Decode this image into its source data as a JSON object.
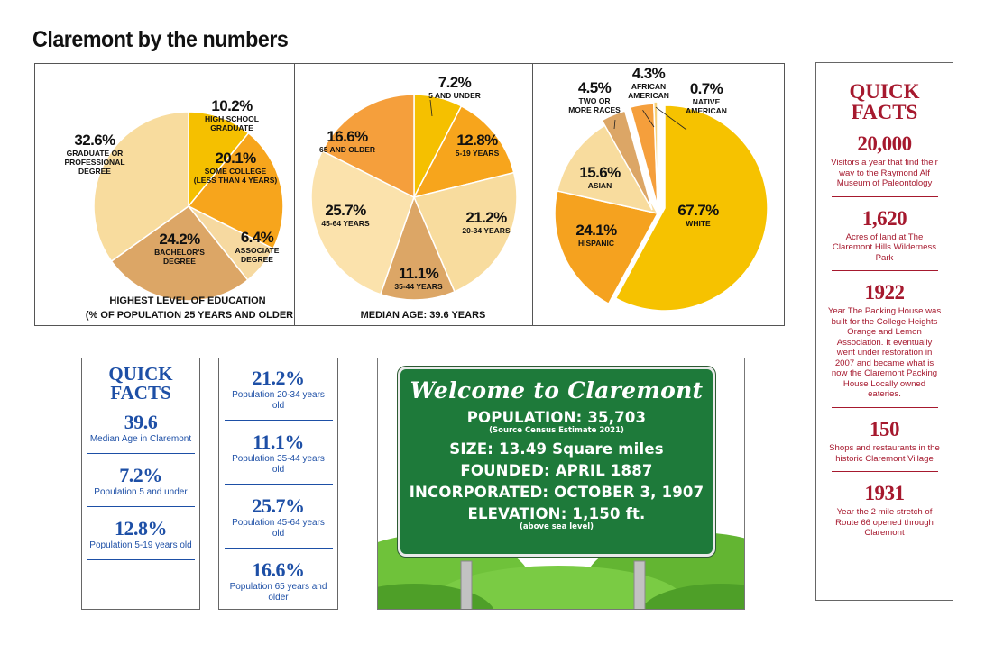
{
  "page": {
    "title": "Claremont by the numbers"
  },
  "chart_data": [
    {
      "type": "pie",
      "title": "HIGHEST LEVEL OF EDUCATION",
      "subtitle": "(% OF POPULATION 25 YEARS AND OLDER",
      "slices": [
        {
          "label": "HIGH SCHOOL GRADUATE",
          "lines": [
            "HIGH SCHOOL",
            "GRADUATE"
          ],
          "value": 10.2,
          "display": "10.2%",
          "color": "#f5c000"
        },
        {
          "label": "SOME COLLEGE (LESS THAN 4 YEARS)",
          "lines": [
            "SOME COLLEGE",
            "(LESS THAN 4 YEARS)"
          ],
          "value": 20.1,
          "display": "20.1%",
          "color": "#f7a51c"
        },
        {
          "label": "ASSOCIATE DEGREE",
          "lines": [
            "ASSOCIATE",
            "DEGREE"
          ],
          "value": 6.4,
          "display": "6.4%",
          "color": "#f6d9a0"
        },
        {
          "label": "BACHELOR'S DEGREE",
          "lines": [
            "BACHELOR'S",
            "DEGREE"
          ],
          "value": 24.2,
          "display": "24.2%",
          "color": "#dca666"
        },
        {
          "label": "GRADUATE OR PROFESSIONAL DEGREE",
          "lines": [
            "GRADUATE OR",
            "PROFESSIONAL",
            "DEGREE"
          ],
          "value": 32.6,
          "display": "32.6%",
          "color": "#f8dc9e"
        }
      ]
    },
    {
      "type": "pie",
      "title": "MEDIAN AGE: 39.6 YEARS",
      "slices": [
        {
          "label": "5 AND UNDER",
          "lines": [
            "5 AND UNDER"
          ],
          "value": 7.2,
          "display": "7.2%",
          "color": "#f5c000"
        },
        {
          "label": "5-19 YEARS",
          "lines": [
            "5-19 YEARS"
          ],
          "value": 12.8,
          "display": "12.8%",
          "color": "#f7a51c"
        },
        {
          "label": "20-34 YEARS",
          "lines": [
            "20-34 YEARS"
          ],
          "value": 21.2,
          "display": "21.2%",
          "color": "#f8dc9e"
        },
        {
          "label": "35-44 YEARS",
          "lines": [
            "35-44 YEARS"
          ],
          "value": 11.1,
          "display": "11.1%",
          "color": "#dca666"
        },
        {
          "label": "45-64 YEARS",
          "lines": [
            "45-64 YEARS"
          ],
          "value": 25.7,
          "display": "25.7%",
          "color": "#fbe2ac"
        },
        {
          "label": "65 AND OLDER",
          "lines": [
            "65 AND OLDER"
          ],
          "value": 16.6,
          "display": "16.6%",
          "color": "#f59f3c"
        }
      ]
    },
    {
      "type": "pie",
      "title": "",
      "slices": [
        {
          "label": "WHITE",
          "lines": [
            "WHITE"
          ],
          "value": 67.7,
          "display": "67.7%",
          "color": "#f6c200"
        },
        {
          "label": "HISPANIC",
          "lines": [
            "HISPANIC"
          ],
          "value": 24.1,
          "display": "24.1%",
          "color": "#f5a21f"
        },
        {
          "label": "ASIAN",
          "lines": [
            "ASIAN"
          ],
          "value": 15.6,
          "display": "15.6%",
          "color": "#f8dc9e"
        },
        {
          "label": "TWO OR MORE RACES",
          "lines": [
            "TWO OR",
            "MORE RACES"
          ],
          "value": 4.5,
          "display": "4.5%",
          "color": "#dca666"
        },
        {
          "label": "AFRICAN AMERICAN",
          "lines": [
            "AFRICAN",
            "AMERICAN"
          ],
          "value": 4.3,
          "display": "4.3%",
          "color": "#f59f3c"
        },
        {
          "label": "NATIVE AMERICAN",
          "lines": [
            "NATIVE",
            "AMERICAN"
          ],
          "value": 0.7,
          "display": "0.7%",
          "color": "#f8d27a"
        }
      ]
    }
  ],
  "sidebar_right": {
    "title_lines": [
      "QUICK",
      "FACTS"
    ],
    "items": [
      {
        "value": "20,000",
        "desc": "Visitors a year that find their way to the Raymond Alf Museum of Paleontology"
      },
      {
        "value": "1,620",
        "desc": "Acres of land at The Claremont Hills Wilderness Park"
      },
      {
        "value": "1922",
        "desc": "Year The Packing House was built for the College Heights Orange and Lemon Association. It eventually went under restoration in 2007 and became what is now the Claremont Packing House Locally owned eateries."
      },
      {
        "value": "150",
        "desc": "Shops and restaurants in the historic Claremont Village"
      },
      {
        "value": "1931",
        "desc": "Year the 2 mile stretch of Route 66 opened through Claremont"
      }
    ],
    "color": "#a6192e"
  },
  "quick_facts_blue": {
    "title_lines": [
      "QUICK",
      "FACTS"
    ],
    "color": "#1d4fa6",
    "left_items": [
      {
        "value": "39.6",
        "desc": "Median Age in Claremont"
      },
      {
        "value": "7.2%",
        "desc": "Population 5 and under"
      },
      {
        "value": "12.8%",
        "desc": "Population 5-19 years old"
      }
    ],
    "right_items": [
      {
        "value": "21.2%",
        "desc": "Population 20-34 years old"
      },
      {
        "value": "11.1%",
        "desc": "Population 35-44 years old"
      },
      {
        "value": "25.7%",
        "desc": "Population 45-64 years old"
      },
      {
        "value": "16.6%",
        "desc": "Population 65 years and older"
      }
    ]
  },
  "welcome_sign": {
    "heading": "Welcome to Claremont",
    "population": "POPULATION: 35,703",
    "population_note": "(Source Census Estimate 2021)",
    "size": "SIZE: 13.49 Square miles",
    "founded": "FOUNDED: APRIL 1887",
    "incorporated": "INCORPORATED: OCTOBER 3, 1907",
    "elevation": "ELEVATION: 1,150 ft.",
    "elevation_note": "(above sea level)"
  }
}
